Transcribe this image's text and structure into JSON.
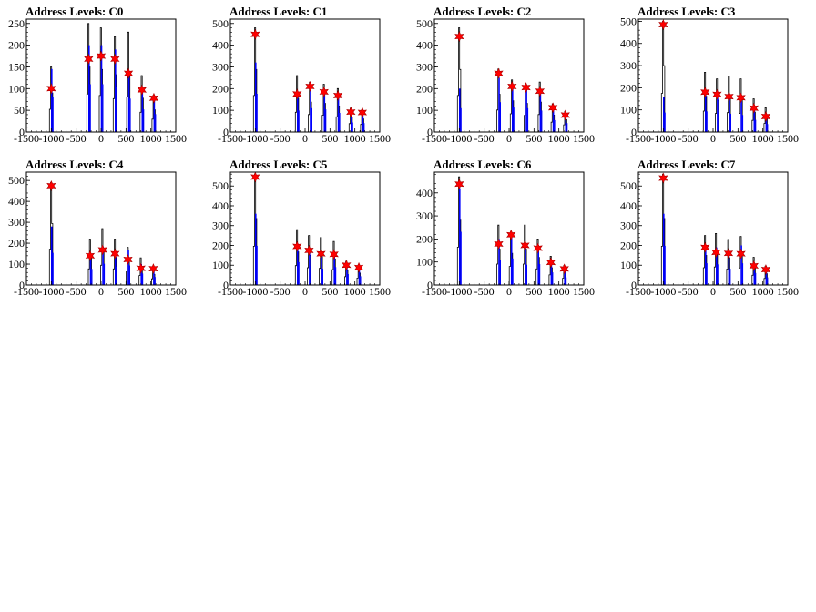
{
  "chart_data": [
    {
      "type": "histogram",
      "title": "Address Levels: C0",
      "xlim": [
        -1500,
        1500
      ],
      "ylim": [
        0,
        260
      ],
      "xticks": [
        -1500,
        -1000,
        -500,
        0,
        500,
        1000,
        1500
      ],
      "xtick_labels": [
        "-1500",
        "-1000",
        "-500",
        "0",
        "500",
        "1000",
        "1500"
      ],
      "yticks": [
        0,
        50,
        100,
        150,
        200,
        250
      ],
      "peaks": [
        {
          "x": -1000,
          "black_height": 150,
          "blue_height": 145,
          "marker": 100
        },
        {
          "x": -250,
          "black_height": 250,
          "blue_height": 200,
          "marker": 168
        },
        {
          "x": 0,
          "black_height": 240,
          "blue_height": 200,
          "marker": 175
        },
        {
          "x": 280,
          "black_height": 220,
          "blue_height": 190,
          "marker": 168
        },
        {
          "x": 550,
          "black_height": 230,
          "blue_height": 140,
          "marker": 135
        },
        {
          "x": 820,
          "black_height": 130,
          "blue_height": 95,
          "marker": 97
        },
        {
          "x": 1060,
          "black_height": 85,
          "blue_height": 75,
          "marker": 78
        }
      ]
    },
    {
      "type": "histogram",
      "title": "Address Levels: C1",
      "xlim": [
        -1500,
        1500
      ],
      "ylim": [
        0,
        520
      ],
      "xticks": [
        -1500,
        -1000,
        -500,
        0,
        500,
        1000,
        1500
      ],
      "xtick_labels": [
        "-1500",
        "-1000",
        "-500",
        "0",
        "500",
        "1000",
        "1500"
      ],
      "yticks": [
        0,
        100,
        200,
        300,
        400,
        500
      ],
      "peaks": [
        {
          "x": -1000,
          "black_height": 480,
          "blue_height": 320,
          "marker": 450
        },
        {
          "x": -160,
          "black_height": 260,
          "blue_height": 180,
          "marker": 175
        },
        {
          "x": 100,
          "black_height": 230,
          "blue_height": 200,
          "marker": 210
        },
        {
          "x": 380,
          "black_height": 220,
          "blue_height": 190,
          "marker": 185
        },
        {
          "x": 660,
          "black_height": 200,
          "blue_height": 160,
          "marker": 168
        },
        {
          "x": 920,
          "black_height": 110,
          "blue_height": 80,
          "marker": 92
        },
        {
          "x": 1150,
          "black_height": 100,
          "blue_height": 75,
          "marker": 90
        }
      ]
    },
    {
      "type": "histogram",
      "title": "Address Levels: C2",
      "xlim": [
        -1500,
        1500
      ],
      "ylim": [
        0,
        520
      ],
      "xticks": [
        -1500,
        -1000,
        -500,
        0,
        500,
        1000,
        1500
      ],
      "xtick_labels": [
        "-1500",
        "-1000",
        "-500",
        "0",
        "500",
        "1000",
        "1500"
      ],
      "yticks": [
        0,
        100,
        200,
        300,
        400,
        500
      ],
      "peaks": [
        {
          "x": -1000,
          "black_height": 480,
          "blue_height": 200,
          "marker": 440
        },
        {
          "x": -210,
          "black_height": 290,
          "blue_height": 250,
          "marker": 270
        },
        {
          "x": 60,
          "black_height": 240,
          "blue_height": 205,
          "marker": 210
        },
        {
          "x": 340,
          "black_height": 220,
          "blue_height": 200,
          "marker": 205
        },
        {
          "x": 620,
          "black_height": 230,
          "blue_height": 180,
          "marker": 188
        },
        {
          "x": 880,
          "black_height": 130,
          "blue_height": 100,
          "marker": 112
        },
        {
          "x": 1130,
          "black_height": 95,
          "blue_height": 75,
          "marker": 78
        }
      ]
    },
    {
      "type": "histogram",
      "title": "Address Levels: C3",
      "xlim": [
        -1500,
        1500
      ],
      "ylim": [
        0,
        510
      ],
      "xticks": [
        -1500,
        -1000,
        -500,
        0,
        500,
        1000,
        1500
      ],
      "xtick_labels": [
        "-1500",
        "-1000",
        "-500",
        "0",
        "500",
        "1000",
        "1500"
      ],
      "yticks": [
        0,
        100,
        200,
        300,
        400,
        500
      ],
      "peaks": [
        {
          "x": -1000,
          "black_height": 500,
          "blue_height": 160,
          "marker": 485
        },
        {
          "x": -160,
          "black_height": 270,
          "blue_height": 170,
          "marker": 180
        },
        {
          "x": 80,
          "black_height": 240,
          "blue_height": 165,
          "marker": 170
        },
        {
          "x": 320,
          "black_height": 250,
          "blue_height": 150,
          "marker": 160
        },
        {
          "x": 560,
          "black_height": 240,
          "blue_height": 140,
          "marker": 155
        },
        {
          "x": 820,
          "black_height": 150,
          "blue_height": 100,
          "marker": 108
        },
        {
          "x": 1060,
          "black_height": 110,
          "blue_height": 65,
          "marker": 70
        }
      ]
    },
    {
      "type": "histogram",
      "title": "Address Levels: C4",
      "xlim": [
        -1500,
        1500
      ],
      "ylim": [
        0,
        540
      ],
      "xticks": [
        -1500,
        -1000,
        -500,
        0,
        500,
        1000,
        1500
      ],
      "xtick_labels": [
        "-1500",
        "-1000",
        "-500",
        "0",
        "500",
        "1000",
        "1500"
      ],
      "yticks": [
        0,
        100,
        200,
        300,
        400,
        500
      ],
      "peaks": [
        {
          "x": -1000,
          "black_height": 490,
          "blue_height": 280,
          "marker": 475
        },
        {
          "x": -220,
          "black_height": 220,
          "blue_height": 140,
          "marker": 140
        },
        {
          "x": 30,
          "black_height": 270,
          "blue_height": 185,
          "marker": 168
        },
        {
          "x": 280,
          "black_height": 220,
          "blue_height": 160,
          "marker": 150
        },
        {
          "x": 540,
          "black_height": 180,
          "blue_height": 170,
          "marker": 122
        },
        {
          "x": 800,
          "black_height": 130,
          "blue_height": 100,
          "marker": 80
        },
        {
          "x": 1050,
          "black_height": 85,
          "blue_height": 70,
          "marker": 78
        }
      ]
    },
    {
      "type": "histogram",
      "title": "Address Levels: C5",
      "xlim": [
        -1500,
        1500
      ],
      "ylim": [
        0,
        570
      ],
      "xticks": [
        -1500,
        -1000,
        -500,
        0,
        500,
        1000,
        1500
      ],
      "xtick_labels": [
        "-1500",
        "-1000",
        "-500",
        "0",
        "500",
        "1000",
        "1500"
      ],
      "yticks": [
        0,
        100,
        200,
        300,
        400,
        500
      ],
      "peaks": [
        {
          "x": -1000,
          "black_height": 560,
          "blue_height": 360,
          "marker": 545
        },
        {
          "x": -160,
          "black_height": 280,
          "blue_height": 210,
          "marker": 195
        },
        {
          "x": 80,
          "black_height": 250,
          "blue_height": 175,
          "marker": 175
        },
        {
          "x": 320,
          "black_height": 240,
          "blue_height": 150,
          "marker": 158
        },
        {
          "x": 580,
          "black_height": 220,
          "blue_height": 165,
          "marker": 155
        },
        {
          "x": 830,
          "black_height": 120,
          "blue_height": 100,
          "marker": 100
        },
        {
          "x": 1080,
          "black_height": 100,
          "blue_height": 80,
          "marker": 88
        }
      ]
    },
    {
      "type": "histogram",
      "title": "Address Levels: C6",
      "xlim": [
        -1500,
        1500
      ],
      "ylim": [
        0,
        490
      ],
      "xticks": [
        -1500,
        -1000,
        -500,
        0,
        500,
        1000,
        1500
      ],
      "xtick_labels": [
        "-1500",
        "-1000",
        "-500",
        "0",
        "500",
        "1000",
        "1500"
      ],
      "yticks": [
        0,
        100,
        200,
        300,
        400
      ],
      "peaks": [
        {
          "x": -1000,
          "black_height": 470,
          "blue_height": 420,
          "marker": 438
        },
        {
          "x": -210,
          "black_height": 260,
          "blue_height": 200,
          "marker": 178
        },
        {
          "x": 40,
          "black_height": 230,
          "blue_height": 210,
          "marker": 218
        },
        {
          "x": 320,
          "black_height": 260,
          "blue_height": 160,
          "marker": 172
        },
        {
          "x": 580,
          "black_height": 200,
          "blue_height": 165,
          "marker": 160
        },
        {
          "x": 840,
          "black_height": 125,
          "blue_height": 100,
          "marker": 98
        },
        {
          "x": 1110,
          "black_height": 85,
          "blue_height": 60,
          "marker": 70
        }
      ]
    },
    {
      "type": "histogram",
      "title": "Address Levels: C7",
      "xlim": [
        -1500,
        1500
      ],
      "ylim": [
        0,
        570
      ],
      "xticks": [
        -1500,
        -1000,
        -500,
        0,
        500,
        1000,
        1500
      ],
      "xtick_labels": [
        "-1500",
        "-1000",
        "-500",
        "0",
        "500",
        "1000",
        "1500"
      ],
      "yticks": [
        0,
        100,
        200,
        300,
        400,
        500
      ],
      "peaks": [
        {
          "x": -1000,
          "black_height": 560,
          "blue_height": 360,
          "marker": 540
        },
        {
          "x": -160,
          "black_height": 250,
          "blue_height": 200,
          "marker": 190
        },
        {
          "x": 60,
          "black_height": 260,
          "blue_height": 190,
          "marker": 165
        },
        {
          "x": 310,
          "black_height": 230,
          "blue_height": 150,
          "marker": 160
        },
        {
          "x": 560,
          "black_height": 245,
          "blue_height": 200,
          "marker": 158
        },
        {
          "x": 820,
          "black_height": 140,
          "blue_height": 110,
          "marker": 97
        },
        {
          "x": 1060,
          "black_height": 95,
          "blue_height": 70,
          "marker": 78
        }
      ]
    }
  ],
  "colors": {
    "outline": "#000000",
    "blue_hist": "#0000ff",
    "marker_fill": "#ff0000",
    "marker_stroke": "#aa0000"
  }
}
